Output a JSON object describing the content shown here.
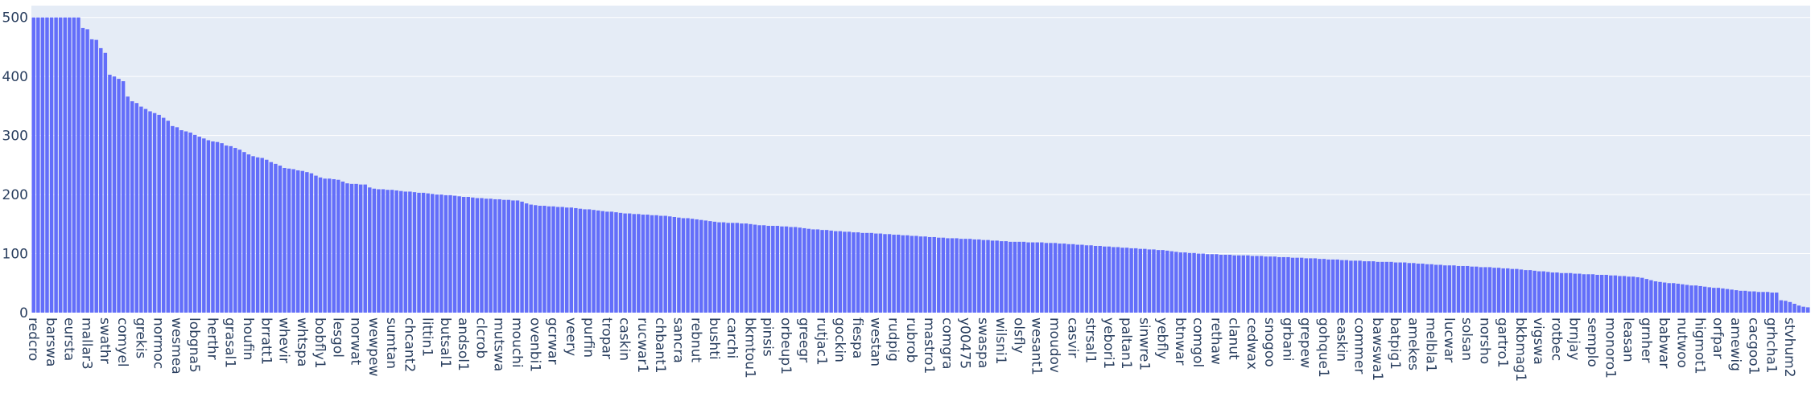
{
  "chart_data": {
    "type": "bar",
    "categories": [
      "redcro",
      null,
      null,
      null,
      "barswa",
      null,
      null,
      null,
      "eursta",
      null,
      null,
      null,
      "mallar3",
      null,
      null,
      null,
      "swathr",
      null,
      null,
      null,
      "comyel",
      null,
      null,
      null,
      "grekis",
      null,
      null,
      null,
      "normoc",
      null,
      null,
      null,
      "wesmea",
      null,
      null,
      null,
      "lobgna5",
      null,
      null,
      null,
      "herthr",
      null,
      null,
      null,
      "grasal1",
      null,
      null,
      null,
      "houfin",
      null,
      null,
      null,
      "brratt1",
      null,
      null,
      null,
      "whevir",
      null,
      null,
      null,
      "whtspa",
      null,
      null,
      null,
      "bobfly1",
      null,
      null,
      null,
      "lesgol",
      null,
      null,
      null,
      "norwat",
      null,
      null,
      null,
      "wewpew",
      null,
      null,
      null,
      "sumtan",
      null,
      null,
      null,
      "chcant2",
      null,
      null,
      null,
      "littin1",
      null,
      null,
      null,
      "butsal1",
      null,
      null,
      null,
      "andsol1",
      null,
      null,
      null,
      "clcrob",
      null,
      null,
      null,
      "mutswa",
      null,
      null,
      null,
      "mouchi",
      null,
      null,
      null,
      "ovenbi1",
      null,
      null,
      null,
      "gcrwar",
      null,
      null,
      null,
      "veery",
      null,
      null,
      null,
      "purfin",
      null,
      null,
      null,
      "tropar",
      null,
      null,
      null,
      "caskin",
      null,
      null,
      null,
      "rucwar1",
      null,
      null,
      null,
      "chbant1",
      null,
      null,
      null,
      "sancra",
      null,
      null,
      null,
      "rebnut",
      null,
      null,
      null,
      "bushti",
      null,
      null,
      null,
      "carchi",
      null,
      null,
      null,
      "bkmtou1",
      null,
      null,
      null,
      "pinsis",
      null,
      null,
      null,
      "orbeup1",
      null,
      null,
      null,
      "greegr",
      null,
      null,
      null,
      "rutjac1",
      null,
      null,
      null,
      "gockin",
      null,
      null,
      null,
      "fiespa",
      null,
      null,
      null,
      "westan",
      null,
      null,
      null,
      "rudpig",
      null,
      null,
      null,
      "rubrob",
      null,
      null,
      null,
      "mastro1",
      null,
      null,
      null,
      "comgra",
      null,
      null,
      null,
      "y00475",
      null,
      null,
      null,
      "swaspa",
      null,
      null,
      null,
      "wilsni1",
      null,
      null,
      null,
      "olsfly",
      null,
      null,
      null,
      "wesant1",
      null,
      null,
      null,
      "moudov",
      null,
      null,
      null,
      "casvir",
      null,
      null,
      null,
      "strsal1",
      null,
      null,
      null,
      "yebori1",
      null,
      null,
      null,
      "paltan1",
      null,
      null,
      null,
      "sinwre1",
      null,
      null,
      null,
      "yebfly",
      null,
      null,
      null,
      "btnwar",
      null,
      null,
      null,
      "comgol",
      null,
      null,
      null,
      "rethaw",
      null,
      null,
      null,
      "clanut",
      null,
      null,
      null,
      "cedwax",
      null,
      null,
      null,
      "snogoo",
      null,
      null,
      null,
      "grbani",
      null,
      null,
      null,
      "grepew",
      null,
      null,
      null,
      "gohque1",
      null,
      null,
      null,
      "easkin",
      null,
      null,
      null,
      "commer",
      null,
      null,
      null,
      "bawswa1",
      null,
      null,
      null,
      "batpig1",
      null,
      null,
      null,
      "amekes",
      null,
      null,
      null,
      "melbla1",
      null,
      null,
      null,
      "lucwar",
      null,
      null,
      null,
      "solsan",
      null,
      null,
      null,
      "norsho",
      null,
      null,
      null,
      "gartro1",
      null,
      null,
      null,
      "bkbmag1",
      null,
      null,
      null,
      "vigswa",
      null,
      null,
      null,
      "rotbec",
      null,
      null,
      null,
      "brnjay",
      null,
      null,
      null,
      "semplo",
      null,
      null,
      null,
      "monoro1",
      null,
      null,
      null,
      "leasan",
      null,
      null,
      null,
      "grnher",
      null,
      null,
      null,
      "babwar",
      null,
      null,
      null,
      "nutwoo",
      null,
      null,
      null,
      "higmot1",
      null,
      null,
      null,
      "orfpar",
      null,
      null,
      null,
      "amewig",
      null,
      null,
      null,
      "cacgoo1",
      null,
      null,
      null,
      "grhcha1",
      null,
      null,
      null,
      "stvhum2",
      null,
      null,
      null,
      null
    ],
    "values": [
      500,
      500,
      500,
      500,
      500,
      500,
      500,
      500,
      500,
      500,
      500,
      482,
      480,
      463,
      462,
      448,
      440,
      403,
      400,
      396,
      392,
      366,
      358,
      355,
      349,
      345,
      341,
      338,
      335,
      330,
      325,
      316,
      314,
      309,
      307,
      305,
      301,
      298,
      295,
      292,
      290,
      289,
      287,
      283,
      282,
      279,
      276,
      272,
      268,
      265,
      263,
      262,
      259,
      255,
      252,
      249,
      245,
      244,
      243,
      241,
      240,
      238,
      236,
      232,
      229,
      227,
      227,
      226,
      225,
      222,
      219,
      218,
      218,
      217,
      217,
      212,
      210,
      209,
      209,
      208,
      208,
      207,
      206,
      205,
      205,
      204,
      203,
      203,
      202,
      201,
      200,
      200,
      199,
      199,
      198,
      197,
      196,
      196,
      195,
      194,
      194,
      193,
      193,
      192,
      192,
      191,
      191,
      190,
      190,
      188,
      185,
      183,
      182,
      181,
      181,
      180,
      180,
      179,
      179,
      178,
      178,
      177,
      176,
      175,
      175,
      174,
      173,
      172,
      171,
      171,
      170,
      169,
      168,
      168,
      167,
      167,
      166,
      166,
      165,
      165,
      164,
      164,
      163,
      162,
      161,
      160,
      160,
      159,
      158,
      157,
      156,
      155,
      154,
      153,
      153,
      152,
      152,
      152,
      151,
      151,
      150,
      149,
      148,
      148,
      147,
      147,
      147,
      146,
      146,
      145,
      145,
      144,
      143,
      142,
      141,
      141,
      140,
      140,
      139,
      138,
      138,
      137,
      137,
      136,
      136,
      135,
      135,
      135,
      134,
      134,
      133,
      133,
      132,
      132,
      131,
      131,
      130,
      130,
      129,
      129,
      128,
      128,
      127,
      127,
      126,
      126,
      126,
      125,
      125,
      125,
      124,
      124,
      123,
      123,
      122,
      122,
      121,
      121,
      120,
      120,
      120,
      120,
      119,
      119,
      119,
      119,
      118,
      118,
      118,
      117,
      117,
      116,
      116,
      115,
      115,
      114,
      114,
      113,
      113,
      112,
      112,
      111,
      111,
      110,
      110,
      109,
      109,
      108,
      108,
      107,
      107,
      106,
      106,
      105,
      104,
      103,
      102,
      102,
      101,
      101,
      100,
      100,
      99,
      99,
      99,
      98,
      98,
      98,
      97,
      97,
      97,
      97,
      96,
      96,
      96,
      95,
      95,
      95,
      94,
      94,
      94,
      93,
      93,
      93,
      92,
      92,
      92,
      91,
      91,
      90,
      90,
      90,
      89,
      89,
      88,
      88,
      88,
      87,
      87,
      87,
      86,
      86,
      86,
      86,
      85,
      85,
      85,
      84,
      84,
      83,
      83,
      82,
      82,
      81,
      81,
      80,
      80,
      80,
      79,
      79,
      79,
      78,
      78,
      77,
      77,
      77,
      76,
      76,
      75,
      75,
      74,
      74,
      73,
      72,
      72,
      71,
      70,
      70,
      69,
      68,
      68,
      67,
      67,
      67,
      66,
      66,
      65,
      65,
      65,
      64,
      64,
      64,
      63,
      63,
      62,
      62,
      61,
      61,
      60,
      59,
      57,
      55,
      53,
      52,
      51,
      50,
      50,
      49,
      48,
      47,
      46,
      46,
      45,
      44,
      43,
      42,
      42,
      41,
      40,
      39,
      38,
      37,
      37,
      36,
      36,
      35,
      35,
      35,
      34,
      34,
      21,
      20,
      18,
      15,
      12,
      10,
      9
    ],
    "color": "#636efa",
    "ylim": [
      0,
      520
    ],
    "yticks": [
      0,
      100,
      200,
      300,
      400,
      500
    ],
    "grid": true
  }
}
